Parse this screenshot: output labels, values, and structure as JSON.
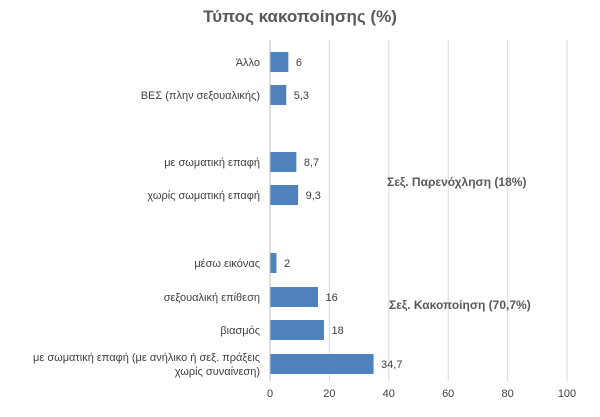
{
  "chart_data": {
    "type": "bar",
    "orientation": "horizontal",
    "title": "Τύπος κακοποίησης (%)",
    "xlim": [
      0,
      100
    ],
    "xticks": [
      0,
      20,
      40,
      60,
      80,
      100
    ],
    "grid": true,
    "bar_color": "#4F81BD",
    "categories": [
      {
        "label": [
          "Άλλο"
        ],
        "value": 6,
        "value_label": "6"
      },
      {
        "label": [
          "ΒΕΣ (πλην σεξουαλικής)"
        ],
        "value": 5.3,
        "value_label": "5,3"
      },
      {
        "label": [
          "με σωματική επαφή"
        ],
        "value": 8.7,
        "value_label": "8,7"
      },
      {
        "label": [
          "χωρίς σωματική επαφή"
        ],
        "value": 9.3,
        "value_label": "9,3"
      },
      {
        "label": [
          "μέσω εικόνας"
        ],
        "value": 2,
        "value_label": "2"
      },
      {
        "label": [
          "σεξουαλική επίθεση"
        ],
        "value": 16,
        "value_label": "16"
      },
      {
        "label": [
          "βιασμός"
        ],
        "value": 18,
        "value_label": "18"
      },
      {
        "label": [
          "με σωματική επαφή (με ανήλικο ή σεξ. πράξεις",
          "χωρίς συναίνεση)"
        ],
        "value": 34.7,
        "value_label": "34,7"
      }
    ],
    "group_labels": [
      "Σεξ. Παρενόχληση (18%)",
      "Σεξ. Κακοποίηση (70,7%)"
    ]
  }
}
